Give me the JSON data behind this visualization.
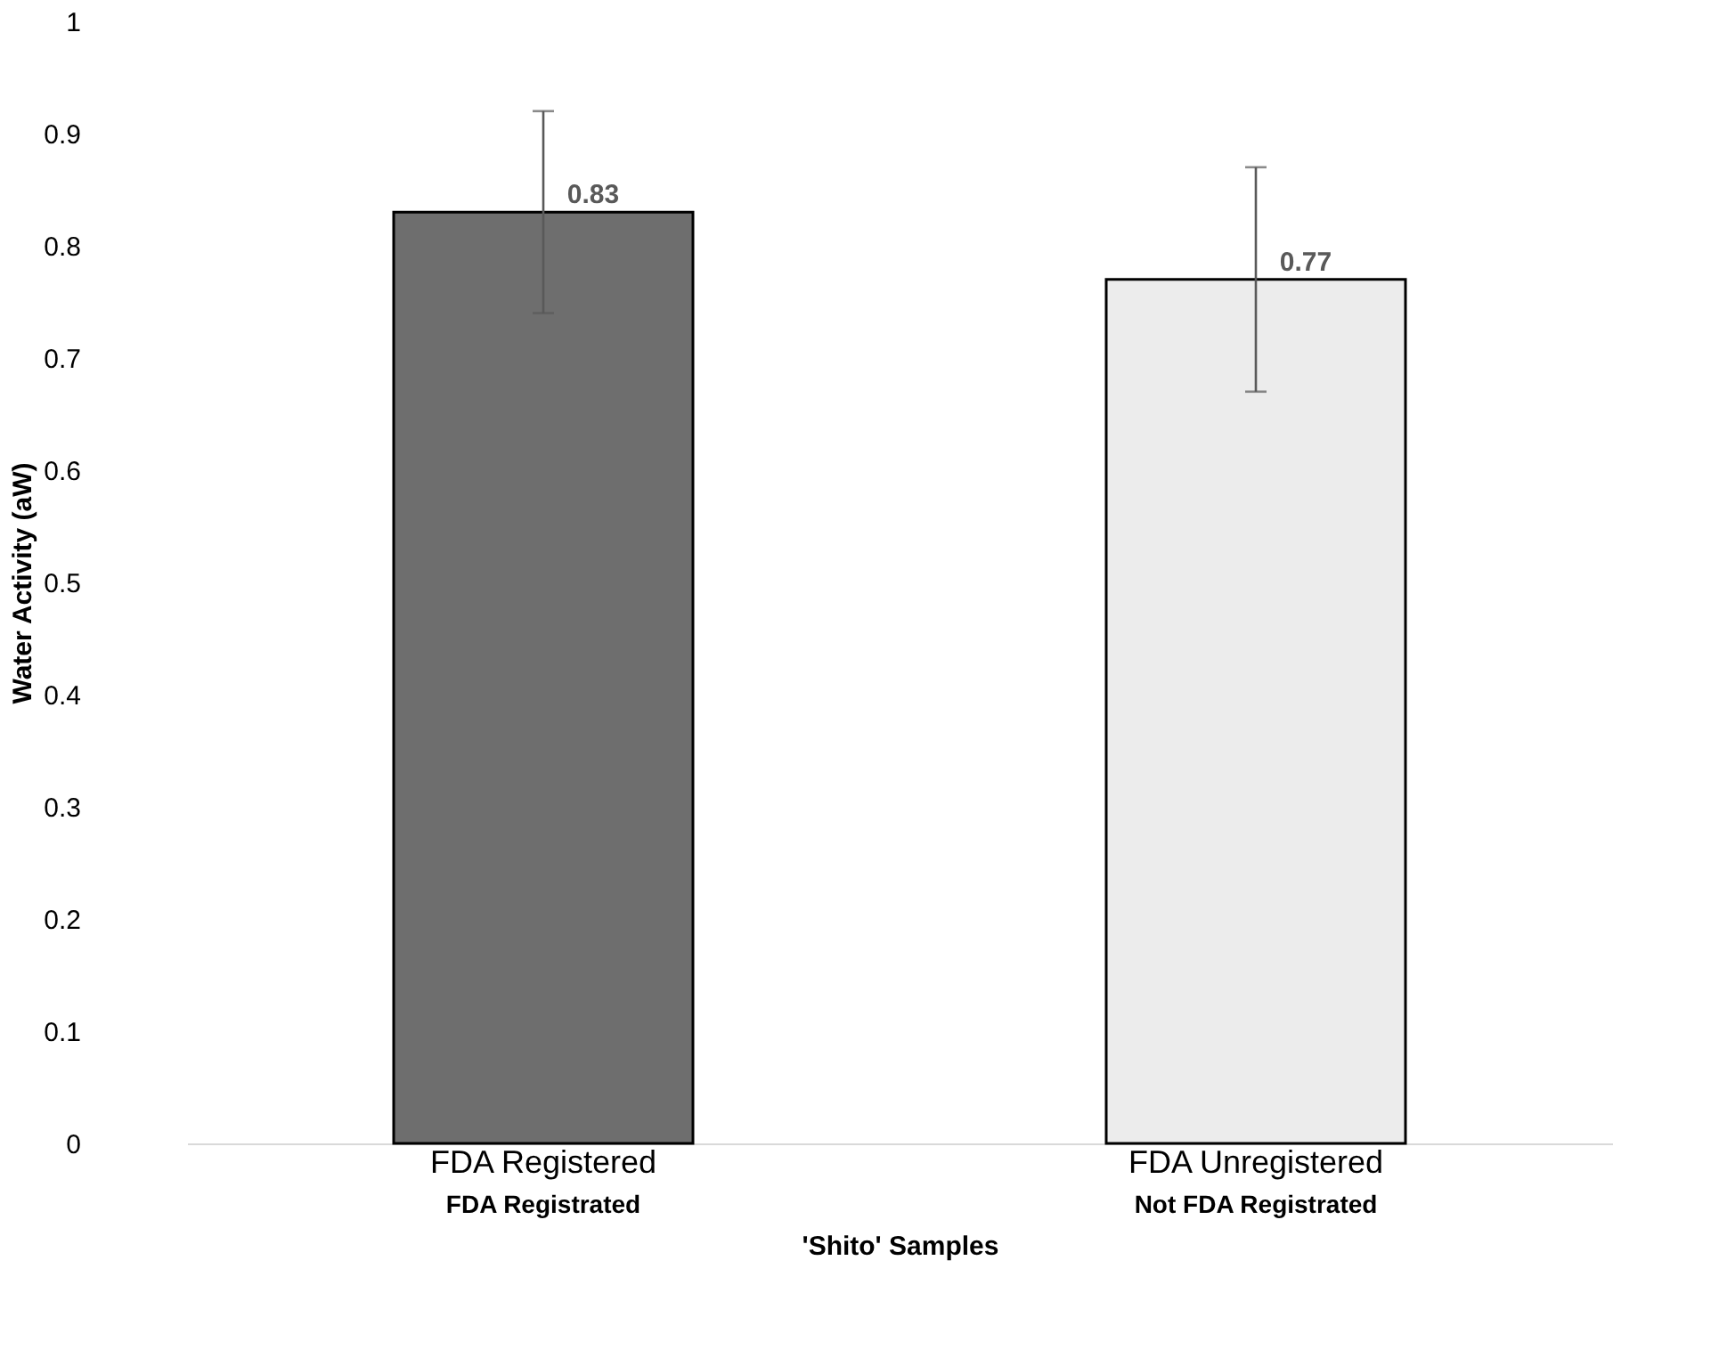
{
  "chart_data": {
    "type": "bar",
    "xlabel": "'Shito' Samples",
    "ylabel": "Water Activity (aW)",
    "categories": [
      "FDA Registered",
      "FDA Unregistered"
    ],
    "values": [
      0.83,
      0.77
    ],
    "colors": [
      "#6e6e6e",
      "#ececec"
    ],
    "errors": [
      0.09,
      0.1
    ],
    "data_labels": true,
    "ylim": [
      0,
      1
    ],
    "yticks": [
      0,
      0.1,
      0.2,
      0.3,
      0.4,
      0.5,
      0.6,
      0.7,
      0.8,
      0.9,
      1
    ],
    "grid": false,
    "annotations": [
      "FDA Registrated",
      "Not FDA Registrated"
    ]
  }
}
